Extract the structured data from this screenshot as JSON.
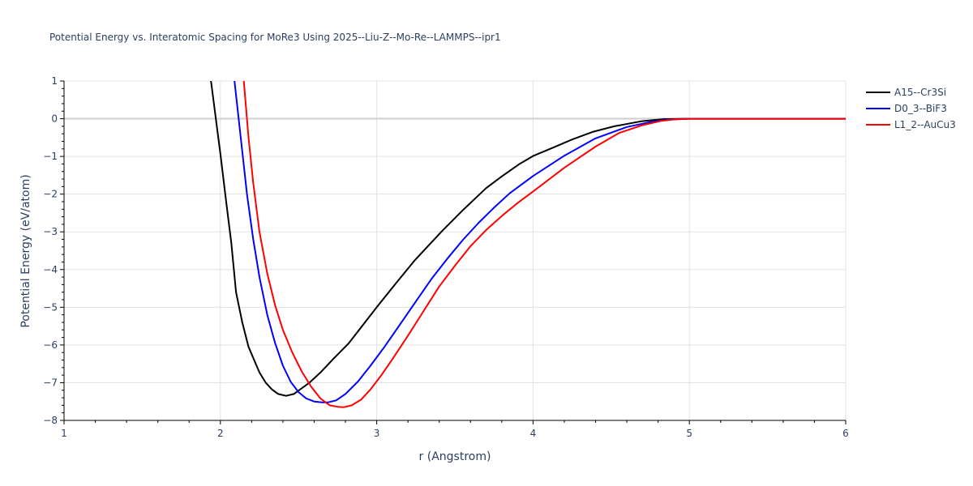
{
  "chart_data": {
    "type": "line",
    "title": "Potential Energy vs. Interatomic Spacing for MoRe3 Using 2025--Liu-Z--Mo-Re--LAMMPS--ipr1",
    "xlabel": "r (Angstrom)",
    "ylabel": "Potential Energy (eV/atom)",
    "xlim": [
      1,
      6
    ],
    "ylim": [
      -8,
      1
    ],
    "xticks": [
      1,
      2,
      3,
      4,
      5,
      6
    ],
    "yticks": [
      1,
      0,
      -1,
      -2,
      -3,
      -4,
      -5,
      -6,
      -7,
      -8
    ],
    "grid": true,
    "legend_position": "top-right-outside",
    "series": [
      {
        "name": "A15--Cr3Si",
        "color": "#000000",
        "x": [
          1.94,
          2.0,
          2.04,
          2.07,
          2.1,
          2.14,
          2.18,
          2.25,
          2.29,
          2.33,
          2.37,
          2.42,
          2.47,
          2.51,
          2.57,
          2.64,
          2.72,
          2.82,
          2.91,
          3.0,
          3.12,
          3.24,
          3.33,
          3.42,
          3.55,
          3.7,
          3.8,
          3.91,
          4.0,
          4.12,
          4.25,
          4.38,
          4.52,
          4.69,
          4.84,
          5.0,
          5.5,
          6.0
        ],
        "y": [
          1.0,
          -0.93,
          -2.3,
          -3.3,
          -4.6,
          -5.4,
          -6.05,
          -6.73,
          -7.0,
          -7.18,
          -7.3,
          -7.35,
          -7.3,
          -7.18,
          -7.0,
          -6.73,
          -6.38,
          -5.96,
          -5.48,
          -5.0,
          -4.38,
          -3.77,
          -3.37,
          -2.97,
          -2.43,
          -1.84,
          -1.53,
          -1.21,
          -0.99,
          -0.78,
          -0.55,
          -0.35,
          -0.2,
          -0.07,
          -0.01,
          0.0,
          0.0,
          0.0
        ]
      },
      {
        "name": "D0_3--BiF3",
        "color": "#0000ff",
        "x": [
          2.09,
          2.13,
          2.17,
          2.21,
          2.25,
          2.3,
          2.35,
          2.4,
          2.45,
          2.5,
          2.55,
          2.6,
          2.65,
          2.69,
          2.74,
          2.8,
          2.88,
          2.96,
          3.05,
          3.15,
          3.25,
          3.35,
          3.45,
          3.55,
          3.65,
          3.75,
          3.85,
          4.0,
          4.2,
          4.4,
          4.6,
          4.75,
          4.85,
          4.93,
          5.0,
          5.5,
          6.0
        ],
        "y": [
          1.0,
          -0.5,
          -2.0,
          -3.2,
          -4.2,
          -5.2,
          -5.95,
          -6.55,
          -6.98,
          -7.25,
          -7.42,
          -7.5,
          -7.52,
          -7.52,
          -7.47,
          -7.3,
          -6.97,
          -6.55,
          -6.05,
          -5.45,
          -4.85,
          -4.25,
          -3.72,
          -3.22,
          -2.77,
          -2.36,
          -1.98,
          -1.52,
          -0.98,
          -0.52,
          -0.22,
          -0.09,
          -0.03,
          -0.01,
          0.0,
          0.0,
          0.0
        ]
      },
      {
        "name": "L1_2--AuCu3",
        "color": "#ff0000",
        "x": [
          2.15,
          2.18,
          2.21,
          2.25,
          2.3,
          2.35,
          2.4,
          2.46,
          2.52,
          2.58,
          2.64,
          2.7,
          2.75,
          2.79,
          2.84,
          2.9,
          2.96,
          3.03,
          3.1,
          3.2,
          3.3,
          3.4,
          3.5,
          3.6,
          3.7,
          3.8,
          3.9,
          4.0,
          4.2,
          4.4,
          4.55,
          4.7,
          4.82,
          4.9,
          5.0,
          5.5,
          6.0
        ],
        "y": [
          1.0,
          -0.5,
          -1.7,
          -3.0,
          -4.1,
          -4.95,
          -5.6,
          -6.2,
          -6.7,
          -7.1,
          -7.42,
          -7.6,
          -7.64,
          -7.65,
          -7.6,
          -7.45,
          -7.18,
          -6.8,
          -6.38,
          -5.75,
          -5.1,
          -4.45,
          -3.9,
          -3.38,
          -2.95,
          -2.58,
          -2.24,
          -1.93,
          -1.3,
          -0.74,
          -0.38,
          -0.17,
          -0.06,
          -0.02,
          0.0,
          0.0,
          0.0
        ]
      }
    ]
  }
}
